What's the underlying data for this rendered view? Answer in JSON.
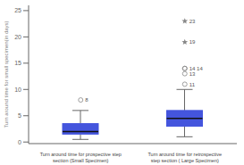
{
  "chart_data": {
    "type": "box",
    "categories": [
      "Turn around time for prospective step\nsection (Small Specimen)",
      "Turn around time for retrospective\nstep section ( Large Specimen)"
    ],
    "boxes": [
      {
        "whisker_low": 0.5,
        "q1": 1.5,
        "median": 2.0,
        "q3": 3.5,
        "whisker_high": 6.0,
        "outliers": [
          8
        ],
        "extremes": [],
        "annotations": [
          {
            "value": 8,
            "text": "8"
          }
        ]
      },
      {
        "whisker_low": 1.0,
        "q1": 3.0,
        "median": 4.5,
        "q3": 6.0,
        "whisker_high": 10.0,
        "outliers": [
          11,
          13,
          14,
          14
        ],
        "extremes": [
          19,
          23
        ],
        "annotations": [
          {
            "value": 11,
            "text": "11"
          },
          {
            "value": 13,
            "text": "13"
          },
          {
            "value": 14,
            "text": "14 14"
          },
          {
            "value": 19,
            "text": "19"
          },
          {
            "value": 23,
            "text": "23"
          }
        ]
      }
    ],
    "ylabel": "Turn around time for small specimen(in days)",
    "ylim": [
      -0.3,
      26
    ],
    "yticks": [
      0,
      5,
      10,
      15,
      20,
      25
    ],
    "color": "#4455dd",
    "grid": false
  }
}
